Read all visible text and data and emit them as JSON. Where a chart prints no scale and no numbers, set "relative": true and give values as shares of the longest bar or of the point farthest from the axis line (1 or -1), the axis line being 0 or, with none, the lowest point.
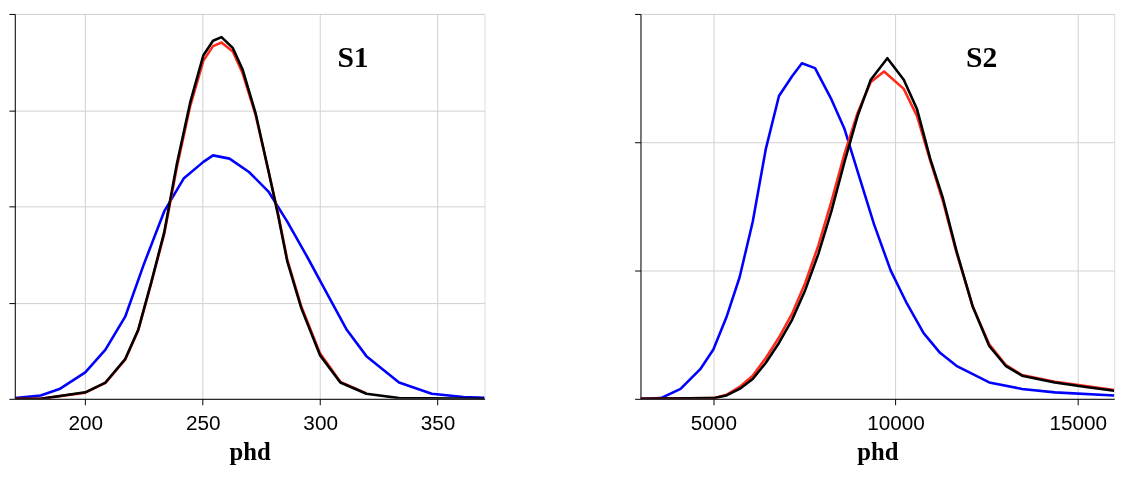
{
  "chart_data": [
    {
      "type": "line",
      "relative": true,
      "xlabel": "phd",
      "annotations": [
        "S1"
      ],
      "grid": true,
      "tick_labels": "x",
      "line_style": "solid",
      "marker": "none",
      "xlim": [
        170,
        370
      ],
      "xticks": [
        200,
        250,
        300,
        350
      ],
      "series": [
        {
          "color": "#0000ff",
          "x": [
            170,
            181,
            189,
            200,
            208.6,
            217,
            225,
            233.6,
            242,
            250.3,
            254.4,
            261.4,
            269.7,
            278,
            286,
            294.7,
            303,
            311.4,
            319.7,
            333.6,
            347.5,
            361,
            370
          ],
          "values": [
            0.002,
            0.009,
            0.027,
            0.073,
            0.136,
            0.227,
            0.373,
            0.518,
            0.61,
            0.655,
            0.673,
            0.664,
            0.627,
            0.573,
            0.49,
            0.39,
            0.29,
            0.19,
            0.118,
            0.045,
            0.014,
            0.005,
            0.003
          ]
        },
        {
          "color": "#ff2a1a",
          "x": [
            170,
            181,
            200,
            208.6,
            217,
            222.5,
            228,
            233.6,
            239,
            244.7,
            250.3,
            254.4,
            258,
            262.8,
            267,
            272.5,
            278,
            282,
            286,
            292,
            300,
            308.6,
            319.7
          ],
          "values": [
            0,
            0,
            0.017,
            0.044,
            0.108,
            0.188,
            0.318,
            0.455,
            0.64,
            0.81,
            0.935,
            0.975,
            0.985,
            0.96,
            0.9,
            0.785,
            0.63,
            0.515,
            0.385,
            0.255,
            0.125,
            0.047,
            0.015
          ]
        },
        {
          "color": "#000000",
          "x": [
            170,
            181,
            200,
            208.6,
            217,
            222.5,
            228,
            233.6,
            239,
            244.7,
            250.3,
            254.4,
            258,
            262.8,
            267,
            272.5,
            278,
            282,
            286,
            292,
            300,
            308.6,
            319.7,
            333.6,
            370
          ],
          "values": [
            0,
            0,
            0.018,
            0.045,
            0.11,
            0.19,
            0.32,
            0.46,
            0.65,
            0.82,
            0.95,
            0.99,
            1.0,
            0.97,
            0.91,
            0.79,
            0.63,
            0.51,
            0.38,
            0.25,
            0.12,
            0.045,
            0.014,
            0.002,
            0
          ]
        }
      ]
    },
    {
      "type": "line",
      "relative": true,
      "xlabel": "phd",
      "annotations": [
        "S2"
      ],
      "grid": true,
      "tick_labels": "x",
      "line_style": "solid",
      "marker": "none",
      "xlim": [
        3000,
        16000
      ],
      "xticks": [
        5000,
        10000,
        15000
      ],
      "series": [
        {
          "color": "#0000ff",
          "x": [
            3000,
            3560,
            4100,
            4640,
            5000,
            5360,
            5720,
            6080,
            6440,
            6800,
            7160,
            7430,
            7790,
            8240,
            8600,
            8960,
            9410,
            9865,
            10310,
            10770,
            11220,
            11670,
            12570,
            13470,
            14370,
            16000
          ],
          "values": [
            0,
            0.002,
            0.029,
            0.087,
            0.145,
            0.24,
            0.357,
            0.52,
            0.734,
            0.889,
            0.947,
            0.985,
            0.971,
            0.879,
            0.792,
            0.667,
            0.512,
            0.377,
            0.28,
            0.193,
            0.135,
            0.097,
            0.048,
            0.029,
            0.019,
            0.01
          ]
        },
        {
          "color": "#ff2a1a",
          "x": [
            3000,
            5000,
            5360,
            5720,
            6080,
            6440,
            6800,
            7160,
            7520,
            7880,
            8240,
            8600,
            8960,
            9320,
            9685,
            10225,
            10590,
            10950,
            11300,
            11670,
            12120,
            12570,
            13020,
            13470,
            14370,
            15270,
            16000
          ],
          "values": [
            0,
            0.002,
            0.012,
            0.035,
            0.068,
            0.12,
            0.18,
            0.25,
            0.34,
            0.45,
            0.58,
            0.72,
            0.84,
            0.93,
            0.961,
            0.91,
            0.83,
            0.7,
            0.58,
            0.43,
            0.27,
            0.16,
            0.1,
            0.07,
            0.05,
            0.037,
            0.026
          ]
        },
        {
          "color": "#000000",
          "x": [
            3000,
            5000,
            5360,
            5720,
            6080,
            6440,
            6800,
            7160,
            7520,
            7880,
            8240,
            8600,
            8960,
            9320,
            9775,
            10225,
            10590,
            10950,
            11300,
            11670,
            12120,
            12570,
            13020,
            13470,
            14370,
            15270,
            16000
          ],
          "values": [
            0,
            0.002,
            0.01,
            0.029,
            0.058,
            0.106,
            0.164,
            0.232,
            0.319,
            0.425,
            0.551,
            0.696,
            0.831,
            0.937,
            1.0,
            0.937,
            0.85,
            0.705,
            0.589,
            0.435,
            0.27,
            0.155,
            0.097,
            0.068,
            0.048,
            0.034,
            0.024
          ]
        }
      ]
    }
  ]
}
